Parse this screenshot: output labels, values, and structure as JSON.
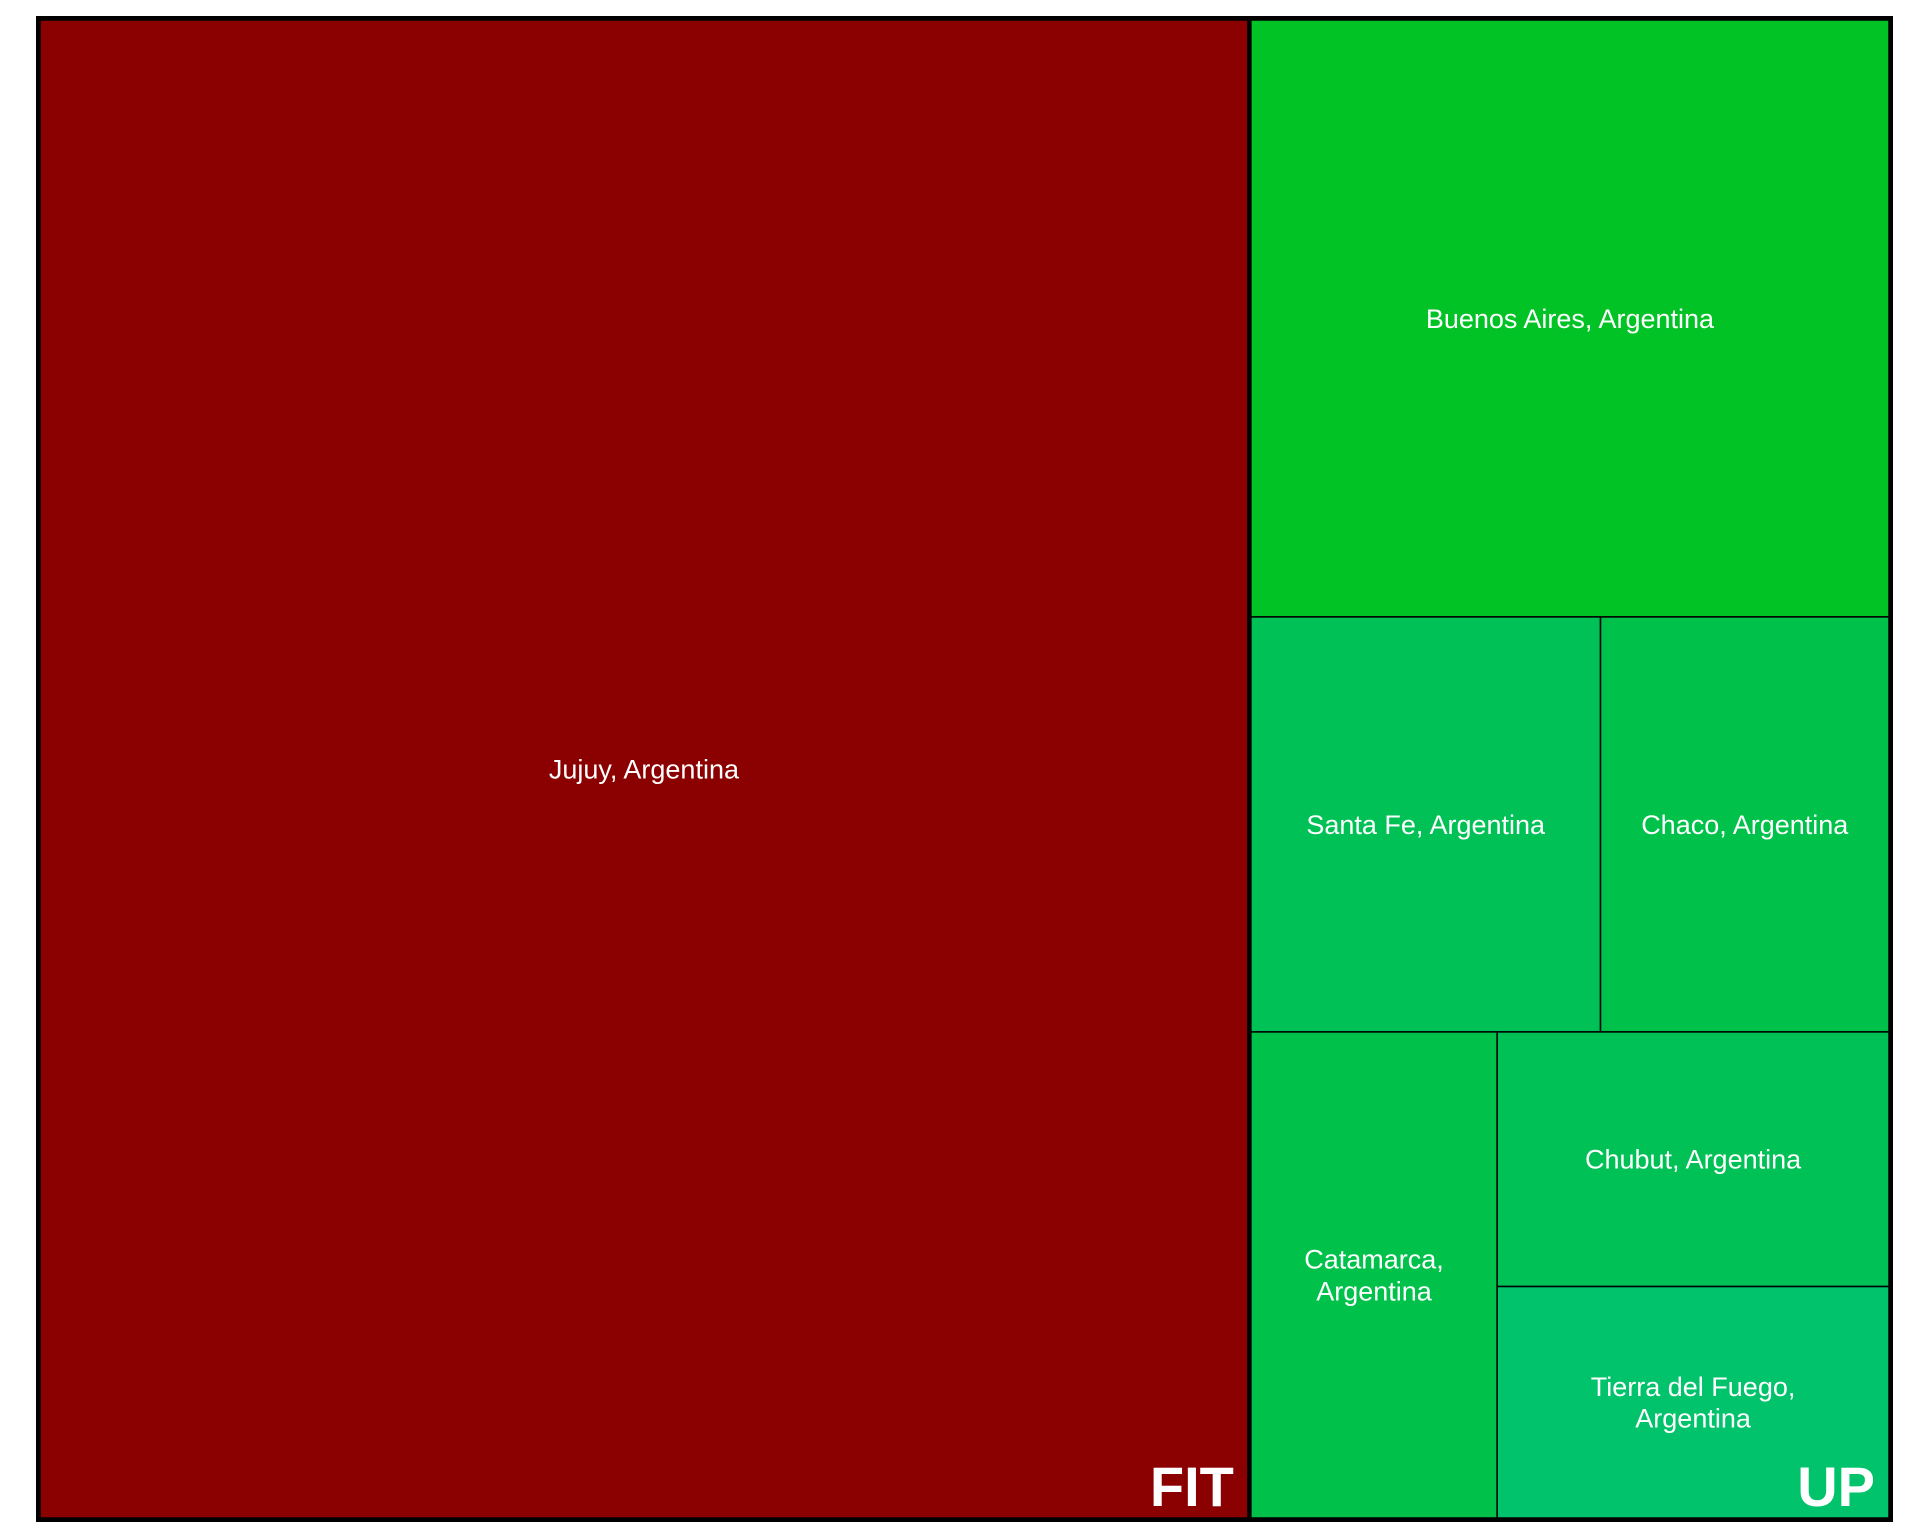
{
  "chart_data": {
    "type": "treemap",
    "title": "",
    "groups": [
      {
        "name": "FIT",
        "color": "#8B0000",
        "items": [
          {
            "label": "Jujuy, Argentina",
            "value": 100,
            "color": "#8B0000"
          }
        ]
      },
      {
        "name": "UP",
        "color": "#00C24A",
        "items": [
          {
            "label": "Buenos Aires, Argentina",
            "value": 21,
            "color": "#02C325"
          },
          {
            "label": "Santa Fe, Argentina",
            "value": 8,
            "color": "#00C155"
          },
          {
            "label": "Chubut, Argentina",
            "value": 5.5,
            "color": "#00C155"
          },
          {
            "label": "Chaco, Argentina",
            "value": 6.6,
            "color": "#00C24A"
          },
          {
            "label": "Catamarca, Argentina",
            "value": 6.6,
            "color": "#00C24A"
          },
          {
            "label": "Tierra del Fuego, Argentina",
            "value": 5,
            "color": "#00C36B"
          }
        ]
      }
    ]
  }
}
